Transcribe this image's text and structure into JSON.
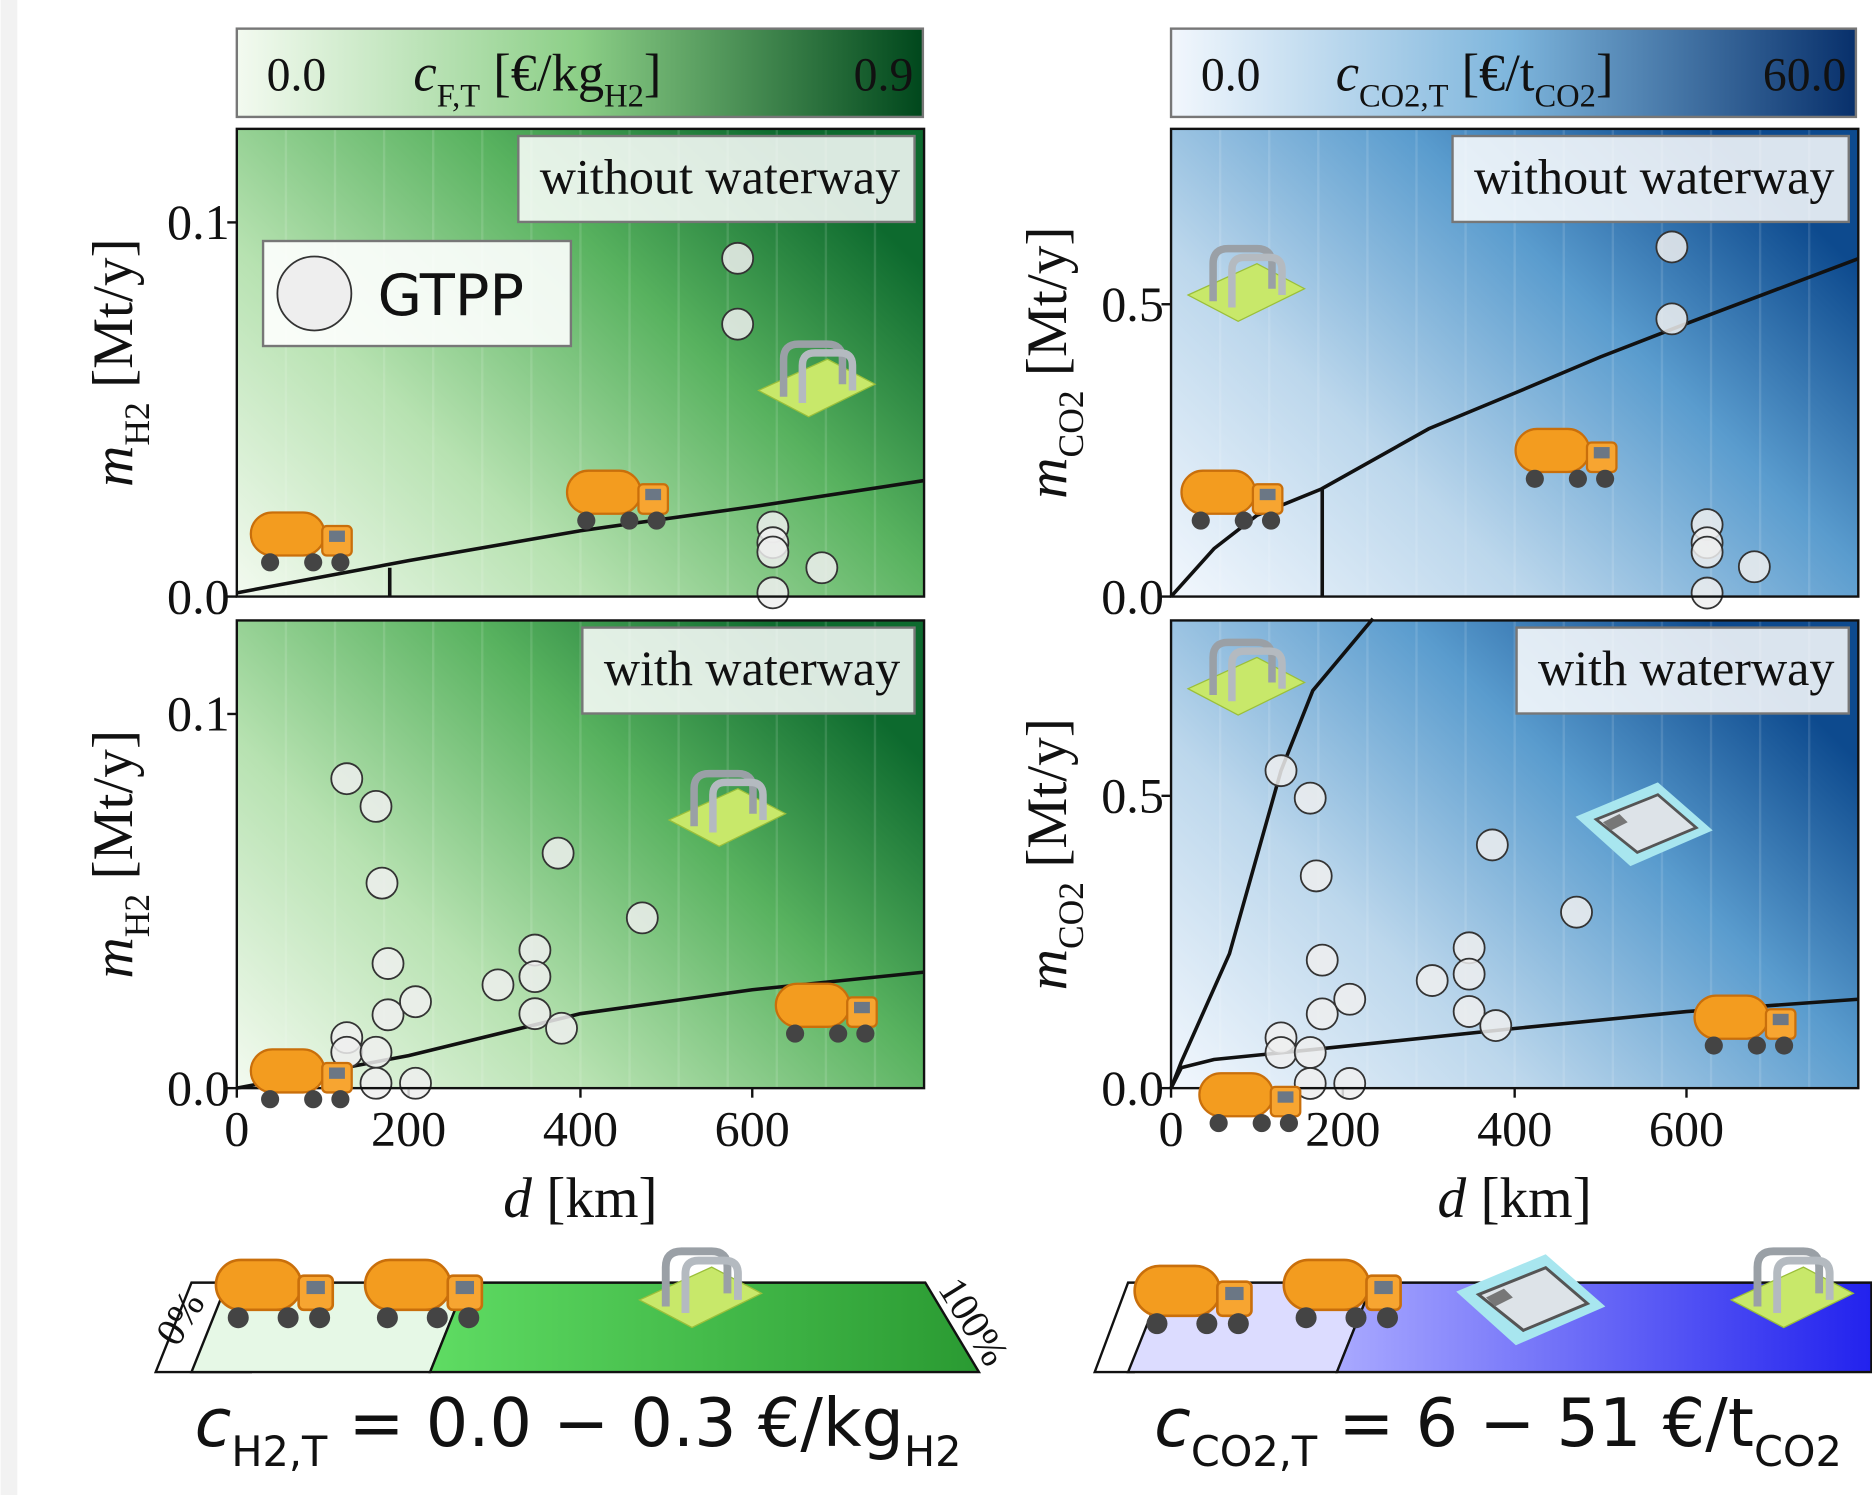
{
  "colorbars": [
    {
      "colormap": "green",
      "ticks": [
        {
          "value": 0,
          "label": "0.0"
        },
        {
          "value": 0.9,
          "label": "0.9"
        }
      ],
      "label": [
        {
          "text": "c",
          "italic": true
        },
        {
          "text": "F,T",
          "sub": true
        },
        {
          "text": " [€/kg"
        },
        {
          "text": "H2",
          "sub": true
        },
        {
          "text": "]"
        }
      ]
    },
    {
      "colormap": "blue",
      "ticks": [
        {
          "value": 0,
          "label": "0.0"
        },
        {
          "value": 60,
          "label": "60.0"
        }
      ],
      "label": [
        {
          "text": "c",
          "italic": true
        },
        {
          "text": "CO2,T",
          "sub": true
        },
        {
          "text": " [€/t"
        },
        {
          "text": "CO2",
          "sub": true
        },
        {
          "text": "]"
        }
      ]
    }
  ],
  "chart_data": [
    {
      "type": "scatter",
      "annotation": "without waterway",
      "legend_label": "GTPP",
      "colormap": "green",
      "color": "#eeeeee",
      "x": [
        583,
        583,
        624,
        624,
        624,
        681,
        624
      ],
      "values": [
        0.0904,
        0.0728,
        0.0186,
        0.0144,
        0.0119,
        0.0077,
        0.001
      ],
      "xlim": [
        0,
        800
      ],
      "ylim": [
        0,
        0.125
      ],
      "yticks": [
        {
          "value": 0,
          "label": "0.0"
        },
        0.1
      ],
      "ylabel": [
        {
          "text": "m",
          "italic": true
        },
        {
          "text": "H2",
          "sub": true
        },
        {
          "text": " [Mt/y]"
        }
      ],
      "curves": [
        {
          "x": [
            0,
            200,
            400,
            600,
            800
          ],
          "values": [
            0.001,
            0.0096,
            0.0176,
            0.024,
            0.031
          ]
        },
        {
          "x": [
            178,
            178
          ],
          "values": [
            0,
            0.0077
          ]
        }
      ]
    },
    {
      "type": "scatter",
      "annotation": "with waterway",
      "colormap": "green",
      "color": "#eeeeee",
      "x": [
        128,
        162,
        169,
        176,
        176,
        208,
        128,
        128,
        162,
        162,
        208,
        304,
        347,
        347,
        347,
        374,
        378,
        472
      ],
      "values": [
        0.0827,
        0.0753,
        0.0548,
        0.0333,
        0.0196,
        0.0231,
        0.0135,
        0.0096,
        0.0096,
        0.0013,
        0.0013,
        0.0276,
        0.0369,
        0.0298,
        0.0199,
        0.0628,
        0.016,
        0.0455
      ],
      "xlim": [
        0,
        800
      ],
      "ylim": [
        0,
        0.125
      ],
      "yticks": [
        {
          "value": 0,
          "label": "0.0"
        },
        0.1
      ],
      "xticks": [
        0,
        200,
        400,
        600
      ],
      "ylabel": [
        {
          "text": "m",
          "italic": true
        },
        {
          "text": "H2",
          "sub": true
        },
        {
          "text": " [Mt/y]"
        }
      ],
      "xlabel": [
        {
          "text": "d",
          "italic": true
        },
        {
          "text": " [km]"
        }
      ],
      "curves": [
        {
          "x": [
            0,
            200,
            400,
            600,
            800
          ],
          "values": [
            0,
            0.0087,
            0.0199,
            0.0263,
            0.031
          ]
        }
      ]
    },
    {
      "type": "scatter",
      "annotation": "without waterway",
      "colormap": "blue",
      "color": "#eeeeee",
      "x": [
        583,
        583,
        624,
        624,
        624,
        679,
        624
      ],
      "values": [
        0.598,
        0.475,
        0.123,
        0.092,
        0.076,
        0.051,
        0.006
      ],
      "xlim": [
        0,
        800
      ],
      "ylim": [
        0,
        0.8
      ],
      "yticks": [
        {
          "value": 0,
          "label": "0.0"
        },
        0.5
      ],
      "ylabel": [
        {
          "text": "m",
          "italic": true
        },
        {
          "text": "CO2",
          "sub": true
        },
        {
          "text": " [Mt/y]"
        }
      ],
      "curves": [
        {
          "x": [
            0,
            50,
            100,
            175,
            300,
            400,
            500,
            600,
            800
          ],
          "values": [
            0,
            0.082,
            0.139,
            0.184,
            0.287,
            0.348,
            0.41,
            0.467,
            0.578
          ]
        },
        {
          "x": [
            176,
            176
          ],
          "values": [
            0,
            0.184
          ]
        }
      ]
    },
    {
      "type": "scatter",
      "annotation": "with waterway",
      "colormap": "blue",
      "color": "#eeeeee",
      "x": [
        128,
        162,
        169,
        176,
        176,
        208,
        128,
        128,
        162,
        162,
        208,
        304,
        347,
        347,
        347,
        374,
        378,
        472
      ],
      "values": [
        0.543,
        0.496,
        0.363,
        0.219,
        0.127,
        0.152,
        0.086,
        0.061,
        0.061,
        0.008,
        0.008,
        0.184,
        0.24,
        0.195,
        0.131,
        0.416,
        0.107,
        0.301
      ],
      "xlim": [
        0,
        800
      ],
      "ylim": [
        0,
        0.8
      ],
      "yticks": [
        {
          "value": 0,
          "label": "0.0"
        },
        0.5
      ],
      "xticks": [
        0,
        200,
        400,
        600
      ],
      "ylabel": [
        {
          "text": "m",
          "italic": true
        },
        {
          "text": "CO2",
          "sub": true
        },
        {
          "text": " [Mt/y]"
        }
      ],
      "xlabel": [
        {
          "text": "d",
          "italic": true
        },
        {
          "text": " [km]"
        }
      ],
      "curves": [
        {
          "x": [
            0,
            12,
            68,
            128,
            165,
            235
          ],
          "values": [
            0,
            0.045,
            0.23,
            0.543,
            0.68,
            0.803
          ]
        },
        {
          "x": [
            0,
            12,
            50,
            165,
            400,
            600,
            800
          ],
          "values": [
            0,
            0.035,
            0.049,
            0.066,
            0.102,
            0.131,
            0.152
          ]
        }
      ]
    }
  ],
  "summary": [
    {
      "bar_labels": [
        "0%",
        "100%"
      ],
      "formula": [
        {
          "text": "c",
          "italic": true
        },
        {
          "text": "H2,T",
          "sub": true
        },
        {
          "text": " = 0.0 − 0.3 €/kg"
        },
        {
          "text": "H2",
          "sub": true
        }
      ]
    },
    {
      "formula": [
        {
          "text": "c",
          "italic": true
        },
        {
          "text": "CO2,T",
          "sub": true
        },
        {
          "text": " = 6 − 51 €/t"
        },
        {
          "text": "CO2",
          "sub": true
        }
      ]
    }
  ]
}
